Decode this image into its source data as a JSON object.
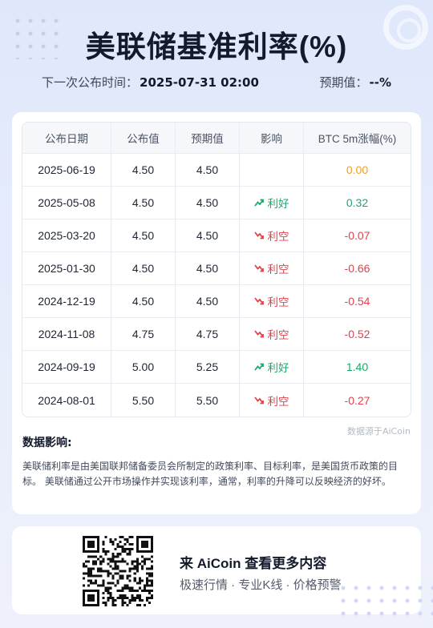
{
  "title": "美联储基准利率(%)",
  "next_release": {
    "label": "下一次公布时间：",
    "value": "2025-07-31 02:00"
  },
  "forecast": {
    "label": "预期值：",
    "value": "--%"
  },
  "table": {
    "headers": [
      "公布日期",
      "公布值",
      "预期值",
      "影响",
      "BTC 5m涨幅(%)"
    ],
    "rows": [
      {
        "date": "2025-06-19",
        "actual": "4.50",
        "forecast": "4.50",
        "impact": "",
        "impact_dir": "none",
        "change": "0.00",
        "change_dir": "zero"
      },
      {
        "date": "2025-05-08",
        "actual": "4.50",
        "forecast": "4.50",
        "impact": "利好",
        "impact_dir": "up",
        "change": "0.32",
        "change_dir": "pos"
      },
      {
        "date": "2025-03-20",
        "actual": "4.50",
        "forecast": "4.50",
        "impact": "利空",
        "impact_dir": "down",
        "change": "-0.07",
        "change_dir": "neg"
      },
      {
        "date": "2025-01-30",
        "actual": "4.50",
        "forecast": "4.50",
        "impact": "利空",
        "impact_dir": "down",
        "change": "-0.66",
        "change_dir": "neg"
      },
      {
        "date": "2024-12-19",
        "actual": "4.50",
        "forecast": "4.50",
        "impact": "利空",
        "impact_dir": "down",
        "change": "-0.54",
        "change_dir": "neg"
      },
      {
        "date": "2024-11-08",
        "actual": "4.75",
        "forecast": "4.75",
        "impact": "利空",
        "impact_dir": "down",
        "change": "-0.52",
        "change_dir": "neg"
      },
      {
        "date": "2024-09-19",
        "actual": "5.00",
        "forecast": "5.25",
        "impact": "利好",
        "impact_dir": "up",
        "change": "1.40",
        "change_dir": "pos"
      },
      {
        "date": "2024-08-01",
        "actual": "5.50",
        "forecast": "5.50",
        "impact": "利空",
        "impact_dir": "down",
        "change": "-0.27",
        "change_dir": "neg"
      }
    ]
  },
  "source": "数据源于AiCoin",
  "impact_section": {
    "title": "数据影响:",
    "text": "美联储利率是由美国联邦储备委员会所制定的政策利率、目标利率，是美国货币政策的目标。 美联储通过公开市场操作并实现该利率，通常，利率的升降可以反映经济的好坏。"
  },
  "promo": {
    "title": "来 AiCoin 查看更多内容",
    "subtitle": "极速行情 · 专业K线 · 价格预警"
  },
  "colors": {
    "positive": "#19a96b",
    "negative": "#e0424a",
    "neutral": "#f0a020"
  }
}
